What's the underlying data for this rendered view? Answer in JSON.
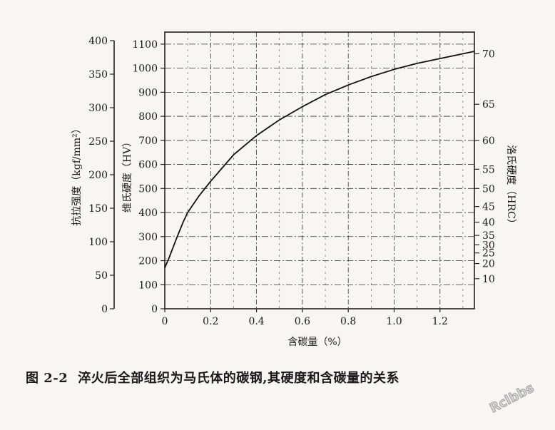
{
  "chart_data": {
    "type": "line",
    "xlabel": "含碳量（%）",
    "x_ticks": [
      "0",
      "0.2",
      "0.4",
      "0.6",
      "0.8",
      "1.0",
      "1.2"
    ],
    "xlim": [
      0,
      1.35
    ],
    "axes": {
      "tensile": {
        "label": "抗拉强度（kgf/mm²）",
        "ticks": [
          "0",
          "50",
          "100",
          "150",
          "200",
          "250",
          "300",
          "350",
          "400"
        ],
        "range": [
          0,
          400
        ]
      },
      "hv": {
        "label": "维氏硬度（HV）",
        "ticks": [
          "0",
          "100",
          "200",
          "300",
          "400",
          "500",
          "600",
          "700",
          "800",
          "900",
          "1000",
          "1100"
        ],
        "range": [
          0,
          1150
        ]
      },
      "hrc": {
        "label": "洛氏硬度（HRC）",
        "ticks": [
          "10",
          "20",
          "25",
          "30",
          "35",
          "40",
          "45",
          "50",
          "55",
          "60",
          "65",
          "70"
        ],
        "hv_equivalent": [
          125,
          188,
          232,
          266,
          305,
          360,
          425,
          500,
          580,
          700,
          850,
          1060
        ]
      }
    },
    "series": [
      {
        "y_axis": "hv",
        "x": [
          0,
          0.02,
          0.05,
          0.08,
          0.1,
          0.15,
          0.2,
          0.3,
          0.4,
          0.5,
          0.6,
          0.7,
          0.8,
          0.9,
          1.0,
          1.1,
          1.2,
          1.3,
          1.35
        ],
        "y": [
          170,
          215,
          290,
          360,
          400,
          470,
          530,
          640,
          720,
          785,
          840,
          890,
          930,
          965,
          995,
          1020,
          1040,
          1060,
          1070
        ]
      }
    ],
    "grid": true,
    "legend": "none"
  },
  "caption": {
    "figure_no": "图 2-2",
    "text": "淬火后全部组织为马氏体的碳钢,其硬度和含碳量的关系"
  },
  "watermark": "Rclbbs"
}
